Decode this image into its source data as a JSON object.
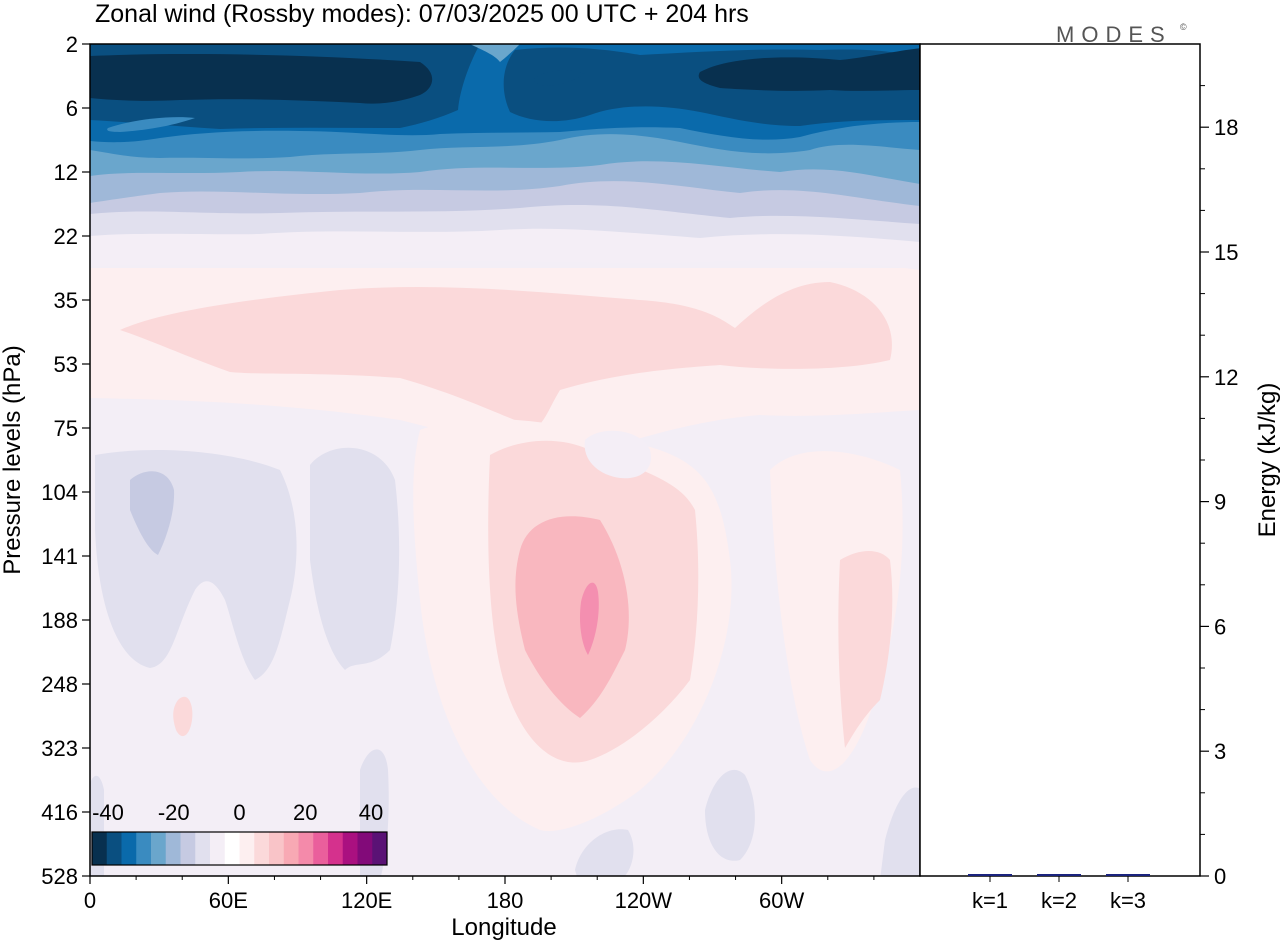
{
  "chart_data": [
    {
      "type": "heatmap",
      "title": "Zonal wind (Rossby modes):  07/03/2025  00 UTC  + 204 hrs",
      "xlabel": "Longitude",
      "ylabel": "Pressure levels (hPa)",
      "x_ticks": [
        "0",
        "60E",
        "120E",
        "180",
        "120W",
        "60W"
      ],
      "y_ticks": [
        "2",
        "6",
        "12",
        "22",
        "35",
        "53",
        "75",
        "104",
        "141",
        "188",
        "248",
        "323",
        "416",
        "528"
      ],
      "y_scale": "log (inverted, pressure)",
      "colorbar": {
        "ticks": [
          "-40",
          "-20",
          "0",
          "20",
          "40"
        ],
        "range": [
          -40,
          40
        ],
        "colors": [
          "#08304f",
          "#0a4f80",
          "#0a6aab",
          "#3a8bc0",
          "#6aa6cc",
          "#9fb8d8",
          "#c6cae2",
          "#e1e0ee",
          "#f4eef6",
          "#ffffff",
          "#fdeff0",
          "#fbd9da",
          "#f9c4c8",
          "#f8a9b4",
          "#f48aaa",
          "#ea5f9c",
          "#d5318d",
          "#aa1080",
          "#820a79",
          "#5a1275"
        ]
      },
      "features": [
        {
          "region": "upper stratosphere 2-12 hPa",
          "value_range": [
            -40,
            -20
          ]
        },
        {
          "region": "12-22 hPa",
          "value_range": [
            -15,
            -5
          ]
        },
        {
          "region": "35-75 hPa band",
          "value_range": [
            2,
            8
          ]
        },
        {
          "region": "near 120W, 141-248 hPa",
          "value_range": [
            10,
            20
          ],
          "peak": 20
        },
        {
          "region": "0-150E, 104-248 hPa",
          "value_range": [
            -5,
            -2
          ]
        }
      ]
    },
    {
      "type": "bar",
      "categories": [
        "k=1",
        "k=2",
        "k=3"
      ],
      "values": [
        0.02,
        0.01,
        0.01
      ],
      "ylabel": "Energy (kJ/kg)",
      "y_ticks": [
        "0",
        "3",
        "6",
        "9",
        "12",
        "15",
        "18"
      ],
      "ylim": [
        0,
        20
      ],
      "bar_color": "#1a237e"
    }
  ],
  "logo_text": "MODES"
}
